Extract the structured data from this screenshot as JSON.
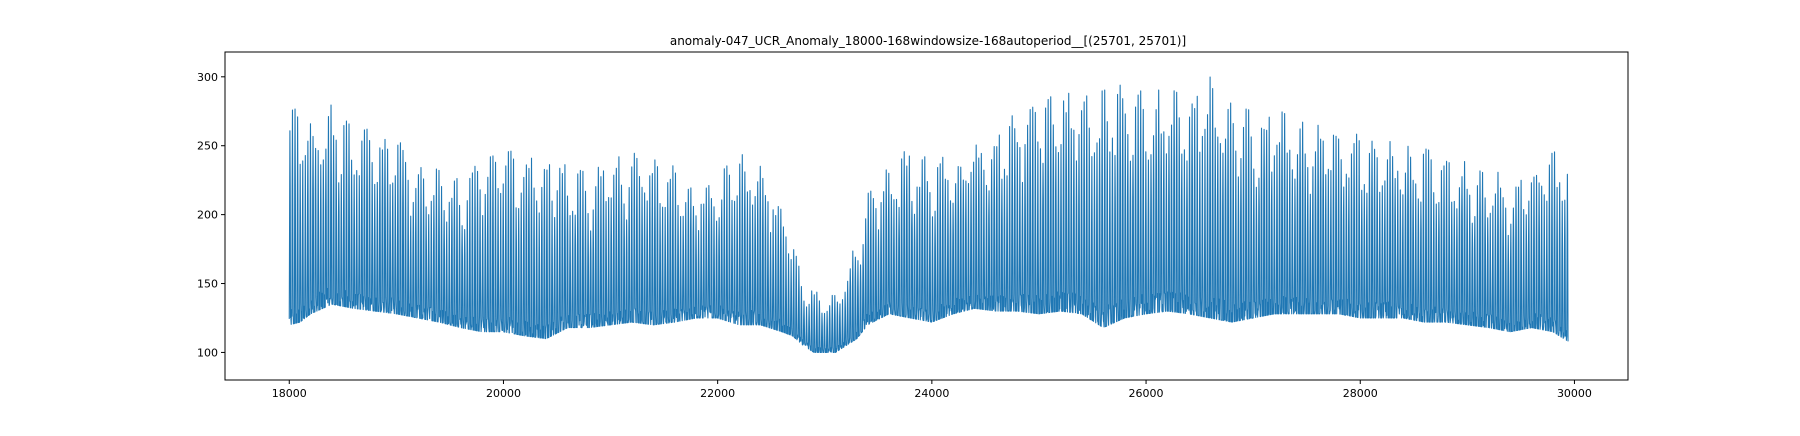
{
  "chart_data": {
    "type": "line",
    "title": "anomaly-047_UCR_Anomaly_18000-168windowsize-168autoperiod__[(25701, 25701)]",
    "xlabel": "",
    "ylabel": "",
    "xlim": [
      17400,
      30500
    ],
    "ylim": [
      80,
      318
    ],
    "x_ticks": [
      18000,
      20000,
      22000,
      24000,
      26000,
      28000,
      30000
    ],
    "x_tick_labels": [
      "18000",
      "20000",
      "22000",
      "24000",
      "26000",
      "28000",
      "30000"
    ],
    "y_ticks": [
      100,
      150,
      200,
      250,
      300
    ],
    "y_tick_labels": [
      "100",
      "150",
      "200",
      "250",
      "300"
    ],
    "grid": false,
    "series": [
      {
        "color": "#1f77b4",
        "x_start": 18000,
        "x_end": 29940,
        "period": 24,
        "envelope": {
          "x": [
            18000,
            18100,
            18200,
            18400,
            18600,
            18800,
            19000,
            19200,
            19400,
            19600,
            19800,
            20000,
            20200,
            20400,
            20600,
            20800,
            21000,
            21200,
            21400,
            21600,
            21800,
            22000,
            22200,
            22400,
            22600,
            22700,
            22800,
            22900,
            23000,
            23100,
            23200,
            23300,
            23400,
            23600,
            23800,
            24000,
            24200,
            24400,
            24600,
            24800,
            25000,
            25200,
            25400,
            25600,
            25800,
            26000,
            26200,
            26400,
            26600,
            26800,
            27000,
            27200,
            27400,
            27600,
            27800,
            28000,
            28200,
            28400,
            28600,
            28800,
            29000,
            29200,
            29400,
            29600,
            29800,
            29940
          ],
          "max": [
            275,
            278,
            270,
            280,
            262,
            262,
            255,
            240,
            232,
            225,
            240,
            245,
            248,
            245,
            235,
            230,
            240,
            245,
            240,
            235,
            225,
            228,
            245,
            235,
            210,
            180,
            150,
            145,
            140,
            142,
            155,
            185,
            215,
            235,
            250,
            238,
            245,
            250,
            262,
            275,
            280,
            290,
            285,
            290,
            295,
            288,
            292,
            285,
            300,
            280,
            275,
            278,
            268,
            265,
            260,
            258,
            255,
            250,
            248,
            242,
            238,
            235,
            225,
            235,
            245,
            250
          ],
          "min": [
            120,
            122,
            128,
            135,
            132,
            130,
            128,
            125,
            122,
            118,
            115,
            115,
            112,
            110,
            118,
            118,
            120,
            122,
            120,
            122,
            125,
            125,
            120,
            120,
            115,
            112,
            105,
            100,
            100,
            100,
            105,
            110,
            120,
            128,
            125,
            122,
            128,
            132,
            130,
            130,
            128,
            130,
            128,
            118,
            125,
            128,
            130,
            128,
            125,
            122,
            125,
            128,
            128,
            128,
            128,
            125,
            125,
            125,
            122,
            122,
            120,
            118,
            115,
            118,
            115,
            108
          ]
        },
        "values_note": ""
      }
    ]
  }
}
